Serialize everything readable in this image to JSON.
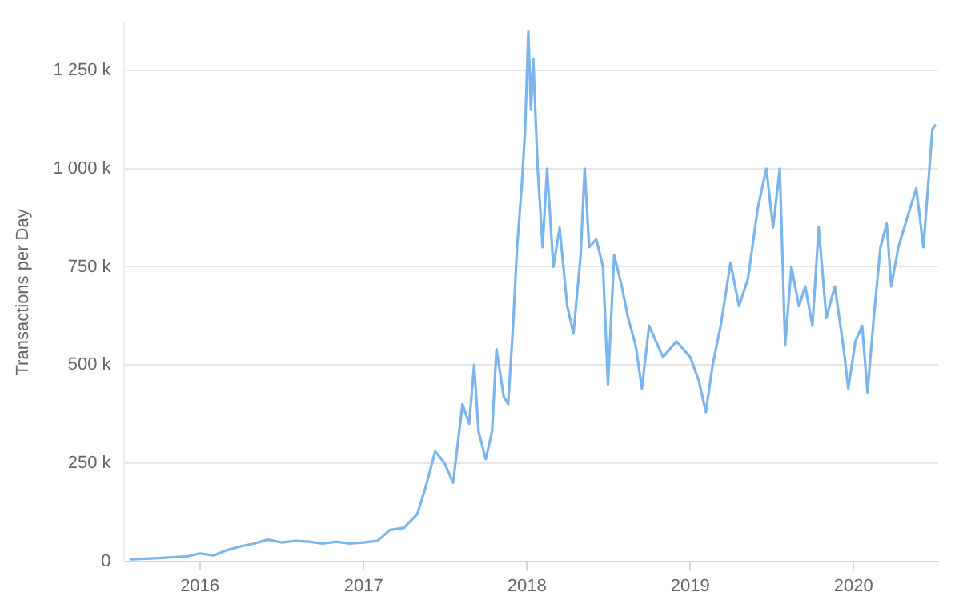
{
  "chart_data": {
    "type": "line",
    "ylabel": "Transactions per Day",
    "x": [
      "2015-08-01",
      "2015-10-01",
      "2015-12-01",
      "2016-01-01",
      "2016-02-01",
      "2016-03-01",
      "2016-04-01",
      "2016-05-01",
      "2016-06-01",
      "2016-07-01",
      "2016-08-01",
      "2016-09-01",
      "2016-10-01",
      "2016-11-01",
      "2016-12-01",
      "2017-01-01",
      "2017-02-01",
      "2017-03-01",
      "2017-04-01",
      "2017-05-01",
      "2017-05-20",
      "2017-06-10",
      "2017-07-01",
      "2017-07-20",
      "2017-08-10",
      "2017-08-25",
      "2017-09-05",
      "2017-09-15",
      "2017-10-01",
      "2017-10-15",
      "2017-10-25",
      "2017-11-10",
      "2017-11-20",
      "2017-12-01",
      "2017-12-10",
      "2017-12-20",
      "2017-12-28",
      "2018-01-04",
      "2018-01-10",
      "2018-01-15",
      "2018-01-25",
      "2018-02-05",
      "2018-02-15",
      "2018-03-01",
      "2018-03-15",
      "2018-04-01",
      "2018-04-15",
      "2018-05-01",
      "2018-05-10",
      "2018-05-20",
      "2018-06-05",
      "2018-06-20",
      "2018-07-01",
      "2018-07-15",
      "2018-08-01",
      "2018-08-15",
      "2018-09-01",
      "2018-09-15",
      "2018-10-01",
      "2018-11-01",
      "2018-12-01",
      "2019-01-01",
      "2019-01-20",
      "2019-02-05",
      "2019-02-20",
      "2019-03-10",
      "2019-04-01",
      "2019-04-20",
      "2019-05-10",
      "2019-06-01",
      "2019-06-20",
      "2019-07-05",
      "2019-07-20",
      "2019-08-01",
      "2019-08-15",
      "2019-09-01",
      "2019-09-15",
      "2019-10-01",
      "2019-10-15",
      "2019-11-01",
      "2019-11-20",
      "2019-12-10",
      "2019-12-20",
      "2020-01-05",
      "2020-01-20",
      "2020-02-01",
      "2020-02-15",
      "2020-03-01",
      "2020-03-15",
      "2020-03-25",
      "2020-04-10",
      "2020-05-01",
      "2020-05-20",
      "2020-06-05",
      "2020-06-15",
      "2020-06-25",
      "2020-07-01"
    ],
    "series": [
      {
        "color": "#7cb5ec",
        "values": [
          5000,
          8000,
          12000,
          20000,
          15000,
          28000,
          38000,
          45000,
          55000,
          48000,
          52000,
          50000,
          45000,
          50000,
          45000,
          48000,
          52000,
          80000,
          85000,
          120000,
          190000,
          280000,
          250000,
          200000,
          400000,
          350000,
          500000,
          330000,
          260000,
          330000,
          540000,
          420000,
          400000,
          600000,
          800000,
          950000,
          1100000,
          1350000,
          1150000,
          1280000,
          1000000,
          800000,
          1000000,
          750000,
          850000,
          650000,
          580000,
          780000,
          1000000,
          800000,
          820000,
          750000,
          450000,
          780000,
          700000,
          620000,
          550000,
          440000,
          600000,
          520000,
          560000,
          520000,
          460000,
          380000,
          500000,
          600000,
          760000,
          650000,
          720000,
          900000,
          1000000,
          850000,
          1000000,
          550000,
          750000,
          650000,
          700000,
          600000,
          850000,
          620000,
          700000,
          540000,
          440000,
          560000,
          600000,
          430000,
          620000,
          800000,
          860000,
          700000,
          800000,
          880000,
          950000,
          800000,
          950000,
          1100000,
          1110000
        ]
      }
    ],
    "xlim": [
      "2015-07-15",
      "2020-07-08"
    ],
    "xticks": [
      {
        "value": "2016",
        "label": "2016"
      },
      {
        "value": "2017",
        "label": "2017"
      },
      {
        "value": "2018",
        "label": "2018"
      },
      {
        "value": "2019",
        "label": "2019"
      },
      {
        "value": "2020",
        "label": "2020"
      }
    ],
    "ylim": [
      0,
      1370000
    ],
    "yticks": [
      0,
      {
        "value": 250000,
        "label": "250 k"
      },
      {
        "value": 500000,
        "label": "500 k"
      },
      {
        "value": 750000,
        "label": "750 k"
      },
      {
        "value": 1000000,
        "label": "1 000 k"
      },
      {
        "value": 1250000,
        "label": "1 250 k"
      }
    ],
    "grid": "y",
    "legend": false,
    "marker": "none",
    "line_style": "solid"
  }
}
